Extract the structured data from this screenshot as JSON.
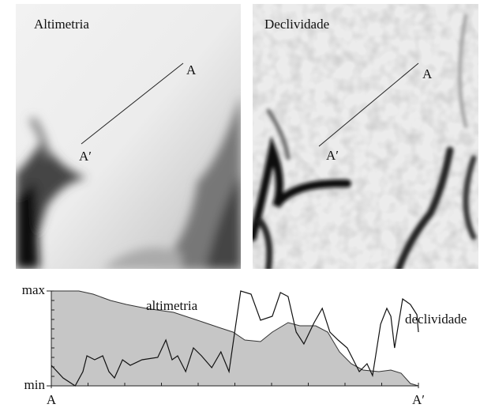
{
  "panels": [
    {
      "title": "Altimetria",
      "labels": [
        "A",
        "A′"
      ]
    },
    {
      "title": "Declividade",
      "labels": [
        "A",
        "A′"
      ]
    }
  ],
  "chart_data": {
    "type": "area-line",
    "xlim": [
      0,
      100
    ],
    "ylim": [
      0,
      100
    ],
    "xticks": [
      {
        "value": 0,
        "label": "A"
      },
      {
        "value": 100,
        "label": "A′"
      }
    ],
    "yticks": [
      {
        "value": 0,
        "label": "min"
      },
      {
        "value": 100,
        "label": "max"
      }
    ],
    "xminor": [
      10,
      20,
      30,
      40,
      50,
      60,
      70,
      80,
      90
    ],
    "yminor": [
      10,
      20,
      30,
      40,
      50,
      60,
      70,
      80,
      90
    ],
    "series": [
      {
        "name": "altimetria",
        "color": "#c6c6c6",
        "fill": true,
        "x": [
          0,
          7.5,
          11.4,
          16.1,
          20.4,
          25.8,
          33.3,
          39.8,
          46.2,
          49.5,
          52.7,
          57,
          60.2,
          64.5,
          67.7,
          72,
          75.3,
          78.5,
          81.7,
          84.9,
          89.2,
          92.5,
          95.3,
          97.8,
          100
        ],
        "values": [
          100,
          100,
          96.7,
          90,
          85.8,
          81.7,
          77.5,
          69.2,
          60.8,
          56.7,
          48.3,
          46.7,
          56.7,
          66.7,
          63.3,
          63.3,
          56.7,
          35.8,
          23.3,
          16.7,
          15,
          16.7,
          13.3,
          2.5,
          0
        ]
      },
      {
        "name": "declividade",
        "color": "#111111",
        "fill": false,
        "x": [
          0,
          3.2,
          6.5,
          8.6,
          9.7,
          11.8,
          14,
          15.7,
          17.2,
          19.4,
          21.5,
          24.7,
          29,
          31.2,
          32.9,
          34.4,
          36.6,
          38.7,
          40.9,
          43.7,
          46.2,
          48.4,
          50.1,
          51.6,
          54.4,
          57,
          60.2,
          62.4,
          64.5,
          66.7,
          68.8,
          71.6,
          73.8,
          75.9,
          78.1,
          80.6,
          83.9,
          86,
          87.5,
          89.7,
          91.4,
          92.5,
          93.5,
          95.7,
          97.8,
          99.6,
          100
        ],
        "values": [
          21.7,
          8.3,
          0,
          15,
          31.7,
          27.5,
          31.7,
          15,
          8.3,
          27.5,
          21.7,
          27.5,
          30,
          48.3,
          27.5,
          31.7,
          15,
          40,
          31.7,
          19.2,
          35.8,
          15,
          60.8,
          100,
          96.7,
          69.2,
          73.3,
          98.3,
          94.2,
          56.7,
          44.2,
          66.7,
          81.7,
          56.7,
          48.3,
          40,
          15,
          23.3,
          10.8,
          65,
          81.7,
          73.3,
          40,
          91.7,
          85.8,
          75,
          56.7
        ]
      }
    ]
  }
}
